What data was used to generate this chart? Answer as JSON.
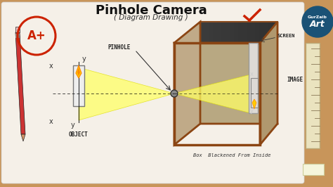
{
  "title": "Pinhole Camera",
  "subtitle": "( Diagram Drawing )",
  "bg_color": "#c8955a",
  "paper_color": "#f5f0e8",
  "box_face_color": "#c8b89a",
  "box_border_color": "#8b4513",
  "screen_color": "#e0ddd8",
  "light_yellow": "#ffff88",
  "candle_color": "#e8e8e8",
  "flame_color": "#ffcc00",
  "title_color": "#111111",
  "subtitle_color": "#333333",
  "label_pinhole": "PINHOLE",
  "label_object": "OBJECT",
  "label_image": "IMAGE",
  "label_screen": "SCREEN",
  "label_box": "Box  Blackened From Inside",
  "grade_text": "A+",
  "brand_text1": "GurZaib",
  "brand_text2": "Art",
  "checkmark_color": "#cc2200"
}
